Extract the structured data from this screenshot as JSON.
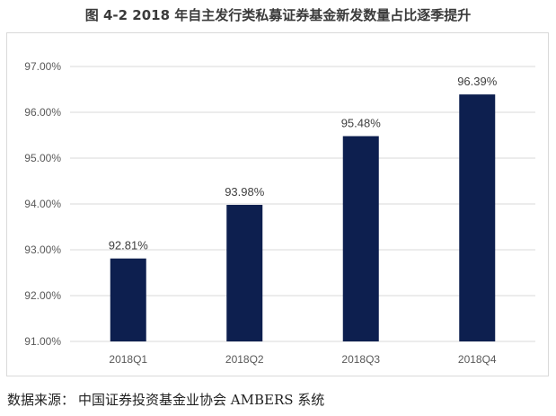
{
  "title": "图 4-2 2018 年自主发行类私募证券基金新发数量占比逐季提升",
  "source": {
    "label": "数据来源：",
    "text": "中国证券投资基金业协会 AMBERS 系统"
  },
  "chart_data": {
    "type": "bar",
    "title": "图 4-2 2018 年自主发行类私募证券基金新发数量占比逐季提升",
    "xlabel": "",
    "ylabel": "",
    "categories": [
      "2018Q1",
      "2018Q2",
      "2018Q3",
      "2018Q4"
    ],
    "values": [
      92.81,
      93.98,
      95.48,
      96.39
    ],
    "value_labels": [
      "92.81%",
      "93.98%",
      "95.48%",
      "96.39%"
    ],
    "ylim": [
      91,
      97
    ],
    "yticks": [
      91,
      92,
      93,
      94,
      95,
      96,
      97
    ],
    "ytick_labels": [
      "91.00%",
      "92.00%",
      "93.00%",
      "94.00%",
      "95.00%",
      "96.00%",
      "97.00%"
    ],
    "bar_color": "#0d1f4f",
    "grid": true,
    "legend": "none"
  }
}
